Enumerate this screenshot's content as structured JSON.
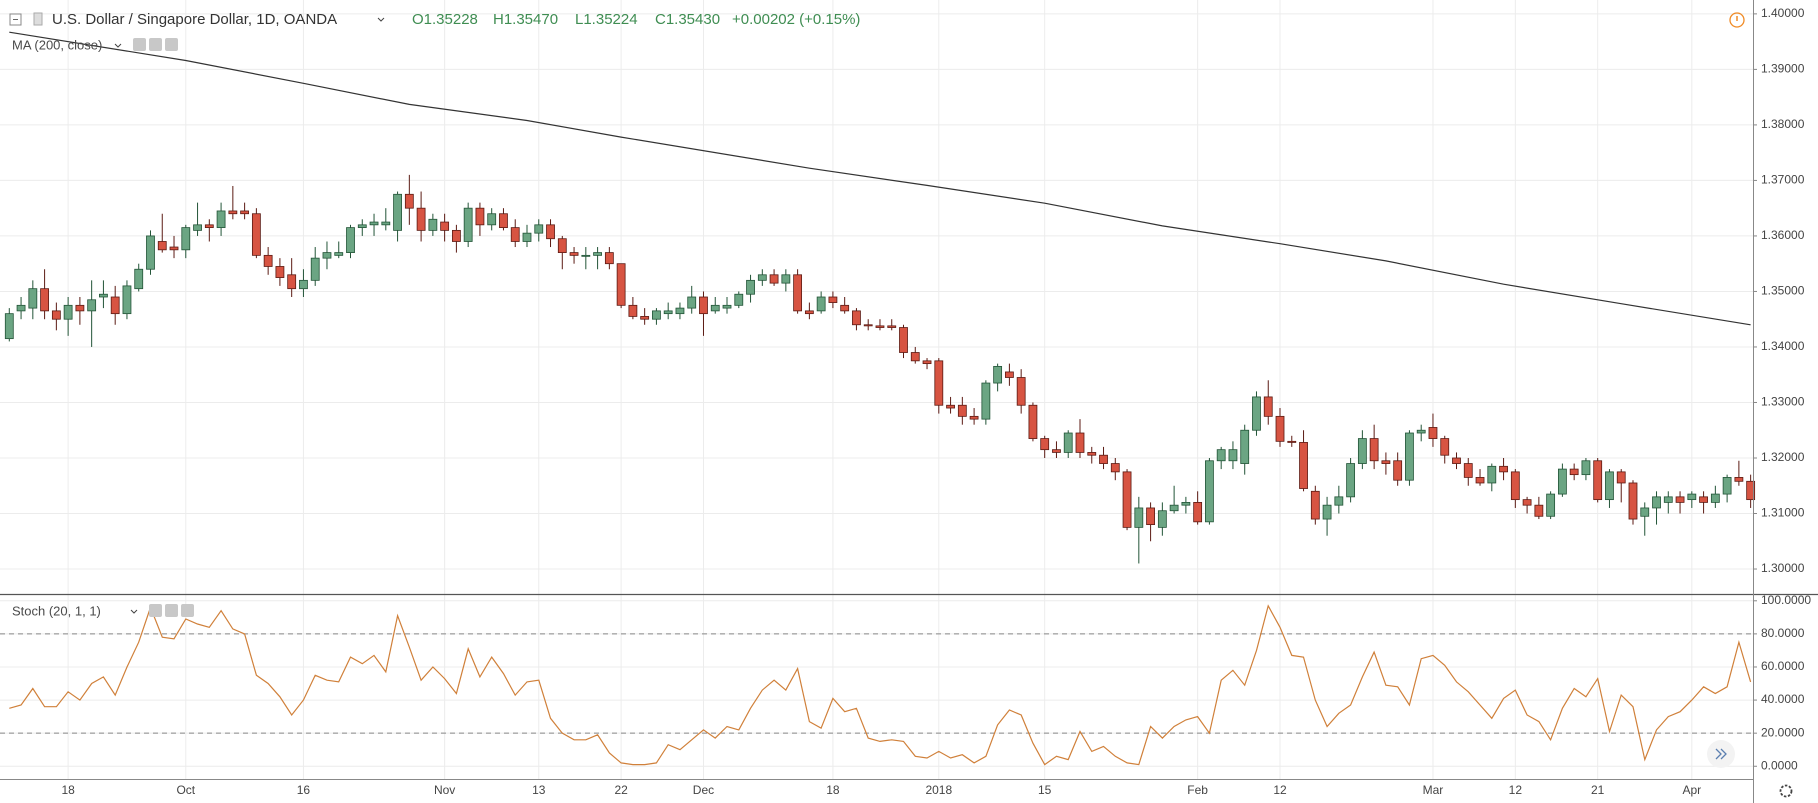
{
  "chart_data": [
    {
      "type": "candlestick",
      "title": "U.S. Dollar / Singapore Dollar, 1D, OANDA",
      "ohlc_labels": [
        "O1.35228",
        "H1.35470",
        "L1.35224",
        "C1.35430"
      ],
      "change_label": "+0.00202 (+0.15%)",
      "up_color": "#6ba583",
      "down_color": "#d75442",
      "up_border": "#225437",
      "down_border": "#5b1a13",
      "open": [
        1.3415,
        1.3465,
        1.347,
        1.3505,
        1.3465,
        1.345,
        1.3475,
        1.3465,
        1.349,
        1.349,
        1.346,
        1.3505,
        1.354,
        1.359,
        1.358,
        1.3575,
        1.361,
        1.362,
        1.3615,
        1.3645,
        1.3645,
        1.364,
        1.3565,
        1.3545,
        1.353,
        1.3505,
        1.352,
        1.356,
        1.3565,
        1.357,
        1.3615,
        1.362,
        1.362,
        1.361,
        1.3675,
        1.365,
        1.361,
        1.3625,
        1.361,
        1.359,
        1.365,
        1.362,
        1.364,
        1.3615,
        1.359,
        1.3605,
        1.362,
        1.3595,
        1.357,
        1.3565,
        1.3565,
        1.357,
        1.355,
        1.3475,
        1.3455,
        1.345,
        1.346,
        1.346,
        1.347,
        1.349,
        1.3465,
        1.347,
        1.3475,
        1.3495,
        1.352,
        1.353,
        1.3515,
        1.353,
        1.3465,
        1.3465,
        1.349,
        1.3475,
        1.3465,
        1.344,
        1.3438,
        1.3438,
        1.3435,
        1.339,
        1.3375,
        1.3375,
        1.3295,
        1.3295,
        1.3275,
        1.327,
        1.3335,
        1.3355,
        1.3345,
        1.3295,
        1.3235,
        1.3215,
        1.321,
        1.3245,
        1.321,
        1.3205,
        1.319,
        1.3175,
        1.3075,
        1.311,
        1.3075,
        1.3105,
        1.3115,
        1.312,
        1.3085,
        1.3195,
        1.3195,
        1.319,
        1.325,
        1.331,
        1.3275,
        1.323,
        1.3228,
        1.314,
        1.309,
        1.3115,
        1.313,
        1.319,
        1.3235,
        1.3195,
        1.3195,
        1.316,
        1.3245,
        1.3255,
        1.3235,
        1.32,
        1.319,
        1.3165,
        1.3155,
        1.3185,
        1.3175,
        1.3125,
        1.3115,
        1.3095,
        1.3135,
        1.318,
        1.317,
        1.3195,
        1.3125,
        1.3175,
        1.3155,
        1.3095,
        1.311,
        1.312,
        1.313,
        1.3125,
        1.313,
        1.312,
        1.3135,
        1.3165,
        1.3158
      ],
      "high": [
        1.347,
        1.349,
        1.352,
        1.354,
        1.348,
        1.349,
        1.349,
        1.352,
        1.352,
        1.351,
        1.352,
        1.355,
        1.361,
        1.364,
        1.36,
        1.362,
        1.366,
        1.363,
        1.366,
        1.369,
        1.366,
        1.365,
        1.358,
        1.356,
        1.356,
        1.354,
        1.358,
        1.359,
        1.359,
        1.362,
        1.363,
        1.364,
        1.365,
        1.368,
        1.371,
        1.368,
        1.364,
        1.364,
        1.362,
        1.366,
        1.366,
        1.365,
        1.365,
        1.363,
        1.362,
        1.363,
        1.363,
        1.36,
        1.358,
        1.358,
        1.358,
        1.358,
        1.355,
        1.349,
        1.347,
        1.347,
        1.348,
        1.348,
        1.351,
        1.35,
        1.349,
        1.349,
        1.35,
        1.353,
        1.354,
        1.354,
        1.354,
        1.354,
        1.348,
        1.35,
        1.35,
        1.349,
        1.347,
        1.345,
        1.345,
        1.345,
        1.344,
        1.34,
        1.338,
        1.338,
        1.331,
        1.331,
        1.329,
        1.334,
        1.337,
        1.337,
        1.336,
        1.33,
        1.324,
        1.323,
        1.325,
        1.327,
        1.322,
        1.322,
        1.32,
        1.318,
        1.313,
        1.312,
        1.312,
        1.315,
        1.313,
        1.314,
        1.32,
        1.322,
        1.323,
        1.326,
        1.332,
        1.334,
        1.329,
        1.324,
        1.325,
        1.315,
        1.313,
        1.315,
        1.32,
        1.325,
        1.326,
        1.321,
        1.321,
        1.325,
        1.326,
        1.328,
        1.324,
        1.321,
        1.32,
        1.318,
        1.319,
        1.32,
        1.318,
        1.313,
        1.313,
        1.314,
        1.319,
        1.319,
        1.32,
        1.32,
        1.318,
        1.318,
        1.316,
        1.312,
        1.314,
        1.314,
        1.314,
        1.314,
        1.314,
        1.315,
        1.317,
        1.3195,
        1.317
      ],
      "low": [
        1.341,
        1.345,
        1.345,
        1.345,
        1.343,
        1.342,
        1.344,
        1.34,
        1.347,
        1.344,
        1.345,
        1.35,
        1.353,
        1.357,
        1.356,
        1.356,
        1.36,
        1.359,
        1.36,
        1.363,
        1.363,
        1.356,
        1.353,
        1.351,
        1.349,
        1.349,
        1.351,
        1.354,
        1.356,
        1.356,
        1.36,
        1.36,
        1.361,
        1.359,
        1.362,
        1.359,
        1.36,
        1.359,
        1.357,
        1.358,
        1.36,
        1.361,
        1.361,
        1.358,
        1.358,
        1.359,
        1.358,
        1.354,
        1.355,
        1.354,
        1.354,
        1.354,
        1.347,
        1.345,
        1.344,
        1.344,
        1.345,
        1.345,
        1.346,
        1.342,
        1.346,
        1.346,
        1.347,
        1.348,
        1.351,
        1.351,
        1.35,
        1.346,
        1.345,
        1.346,
        1.347,
        1.346,
        1.343,
        1.343,
        1.343,
        1.343,
        1.338,
        1.337,
        1.336,
        1.328,
        1.328,
        1.326,
        1.326,
        1.326,
        1.332,
        1.333,
        1.328,
        1.323,
        1.32,
        1.32,
        1.32,
        1.32,
        1.319,
        1.318,
        1.316,
        1.307,
        1.301,
        1.305,
        1.306,
        1.31,
        1.31,
        1.308,
        1.308,
        1.318,
        1.318,
        1.317,
        1.324,
        1.326,
        1.322,
        1.322,
        1.314,
        1.308,
        1.306,
        1.31,
        1.312,
        1.318,
        1.318,
        1.317,
        1.315,
        1.315,
        1.323,
        1.322,
        1.319,
        1.318,
        1.315,
        1.315,
        1.314,
        1.316,
        1.311,
        1.31,
        1.309,
        1.309,
        1.313,
        1.316,
        1.316,
        1.312,
        1.311,
        1.312,
        1.308,
        1.306,
        1.308,
        1.31,
        1.31,
        1.311,
        1.31,
        1.311,
        1.312,
        1.315,
        1.311
      ],
      "close": [
        1.346,
        1.3475,
        1.3505,
        1.3465,
        1.345,
        1.3475,
        1.3465,
        1.3485,
        1.3495,
        1.346,
        1.351,
        1.354,
        1.36,
        1.3575,
        1.3575,
        1.3615,
        1.362,
        1.3615,
        1.3645,
        1.364,
        1.364,
        1.3565,
        1.3545,
        1.3525,
        1.3505,
        1.352,
        1.356,
        1.357,
        1.357,
        1.3615,
        1.362,
        1.3625,
        1.3625,
        1.3675,
        1.365,
        1.361,
        1.363,
        1.361,
        1.359,
        1.365,
        1.362,
        1.364,
        1.3615,
        1.359,
        1.3605,
        1.362,
        1.3595,
        1.357,
        1.3565,
        1.3565,
        1.357,
        1.355,
        1.3475,
        1.3455,
        1.345,
        1.3465,
        1.3465,
        1.347,
        1.349,
        1.346,
        1.3475,
        1.3475,
        1.3495,
        1.352,
        1.353,
        1.3515,
        1.353,
        1.3465,
        1.346,
        1.349,
        1.348,
        1.3465,
        1.344,
        1.3438,
        1.3435,
        1.3435,
        1.339,
        1.3375,
        1.337,
        1.3295,
        1.329,
        1.3275,
        1.327,
        1.3335,
        1.3365,
        1.3345,
        1.3295,
        1.3235,
        1.3215,
        1.321,
        1.3245,
        1.321,
        1.3205,
        1.319,
        1.3175,
        1.3075,
        1.311,
        1.308,
        1.3105,
        1.3115,
        1.312,
        1.3085,
        1.3195,
        1.3215,
        1.3215,
        1.325,
        1.331,
        1.3275,
        1.323,
        1.3228,
        1.3145,
        1.309,
        1.3115,
        1.313,
        1.319,
        1.3235,
        1.3195,
        1.319,
        1.316,
        1.3245,
        1.325,
        1.3235,
        1.3205,
        1.319,
        1.3165,
        1.3155,
        1.3185,
        1.3175,
        1.3125,
        1.3115,
        1.3095,
        1.3135,
        1.318,
        1.317,
        1.3195,
        1.3125,
        1.3175,
        1.3155,
        1.309,
        1.311,
        1.313,
        1.313,
        1.312,
        1.3135,
        1.312,
        1.3135,
        1.3165,
        1.3158,
        1.3125
      ],
      "series": [
        {
          "name": "MA (200, close)",
          "color": "#333333",
          "x": [
            0,
            15,
            25,
            34,
            44,
            52,
            68,
            78,
            88,
            98,
            108,
            117,
            127,
            137,
            148
          ],
          "values": [
            1.3967,
            1.3916,
            1.3875,
            1.3837,
            1.3808,
            1.3778,
            1.3722,
            1.3691,
            1.3659,
            1.3618,
            1.3586,
            1.3555,
            1.3513,
            1.3478,
            1.344
          ]
        }
      ],
      "xlim": [
        -0.79,
        148.2
      ],
      "ylim": [
        1.2955,
        1.4025
      ],
      "yticks": [
        {
          "value": 1.3,
          "label": "1.30000"
        },
        {
          "value": 1.31,
          "label": "1.31000"
        },
        {
          "value": 1.32,
          "label": "1.32000"
        },
        {
          "value": 1.33,
          "label": "1.33000"
        },
        {
          "value": 1.34,
          "label": "1.34000"
        },
        {
          "value": 1.35,
          "label": "1.35000"
        },
        {
          "value": 1.36,
          "label": "1.36000"
        },
        {
          "value": 1.37,
          "label": "1.37000"
        },
        {
          "value": 1.38,
          "label": "1.38000"
        },
        {
          "value": 1.39,
          "label": "1.39000"
        },
        {
          "value": 1.4,
          "label": "1.40000"
        }
      ],
      "grid": true
    },
    {
      "type": "line",
      "series": [
        {
          "name": "Stoch (20, 1, 1)",
          "color": "#d0803a",
          "values": [
            35,
            37,
            47,
            36,
            36,
            45,
            40,
            50,
            54,
            43,
            60,
            75,
            96,
            78,
            77,
            89,
            86,
            84,
            94,
            83,
            80,
            55,
            50,
            42,
            31,
            40,
            55,
            52,
            51,
            66,
            62,
            67,
            57,
            91,
            72,
            52,
            60,
            53,
            44,
            71,
            54,
            66,
            56,
            43,
            51,
            52,
            29,
            20,
            16,
            16,
            19,
            8,
            2,
            1,
            1,
            2,
            13,
            10,
            16,
            22,
            17,
            24,
            22,
            35,
            46,
            52,
            46,
            59,
            27,
            23,
            41,
            33,
            35,
            17,
            15,
            16,
            15,
            6,
            5,
            9,
            5,
            7,
            2,
            6,
            25,
            34,
            31,
            14,
            1,
            6,
            4,
            21,
            9,
            12,
            6,
            2,
            1,
            24,
            17,
            24,
            28,
            30,
            20,
            52,
            58,
            49,
            70,
            97,
            84,
            67,
            66,
            40,
            24,
            32,
            37,
            54,
            69,
            49,
            48,
            37,
            65,
            67,
            61,
            51,
            45,
            37,
            29,
            41,
            46,
            31,
            27,
            16,
            35,
            47,
            42,
            53,
            21,
            43,
            36,
            4,
            22,
            30,
            33,
            40,
            48,
            44,
            48,
            75,
            51
          ]
        }
      ],
      "hlines": [
        80,
        20
      ],
      "xlim": [
        -0.79,
        148.2
      ],
      "ylim": [
        -7.7,
        103.5
      ],
      "yticks": [
        {
          "value": 0,
          "label": "0.0000"
        },
        {
          "value": 20,
          "label": "20.0000"
        },
        {
          "value": 40,
          "label": "40.0000"
        },
        {
          "value": 60,
          "label": "60.0000"
        },
        {
          "value": 80,
          "label": "80.0000"
        },
        {
          "value": 100,
          "label": "100.0000"
        }
      ],
      "xticks": [
        {
          "value": 5,
          "label": "18"
        },
        {
          "value": 15,
          "label": "Oct"
        },
        {
          "value": 25,
          "label": "16"
        },
        {
          "value": 37,
          "label": "Nov"
        },
        {
          "value": 45,
          "label": "13"
        },
        {
          "value": 52,
          "label": "22"
        },
        {
          "value": 59,
          "label": "Dec"
        },
        {
          "value": 70,
          "label": "18"
        },
        {
          "value": 79,
          "label": "2018"
        },
        {
          "value": 88,
          "label": "15"
        },
        {
          "value": 101,
          "label": "Feb"
        },
        {
          "value": 108,
          "label": "12"
        },
        {
          "value": 121,
          "label": "Mar"
        },
        {
          "value": 128,
          "label": "12"
        },
        {
          "value": 135,
          "label": "21"
        },
        {
          "value": 143,
          "label": "Apr"
        }
      ],
      "grid": true
    }
  ]
}
